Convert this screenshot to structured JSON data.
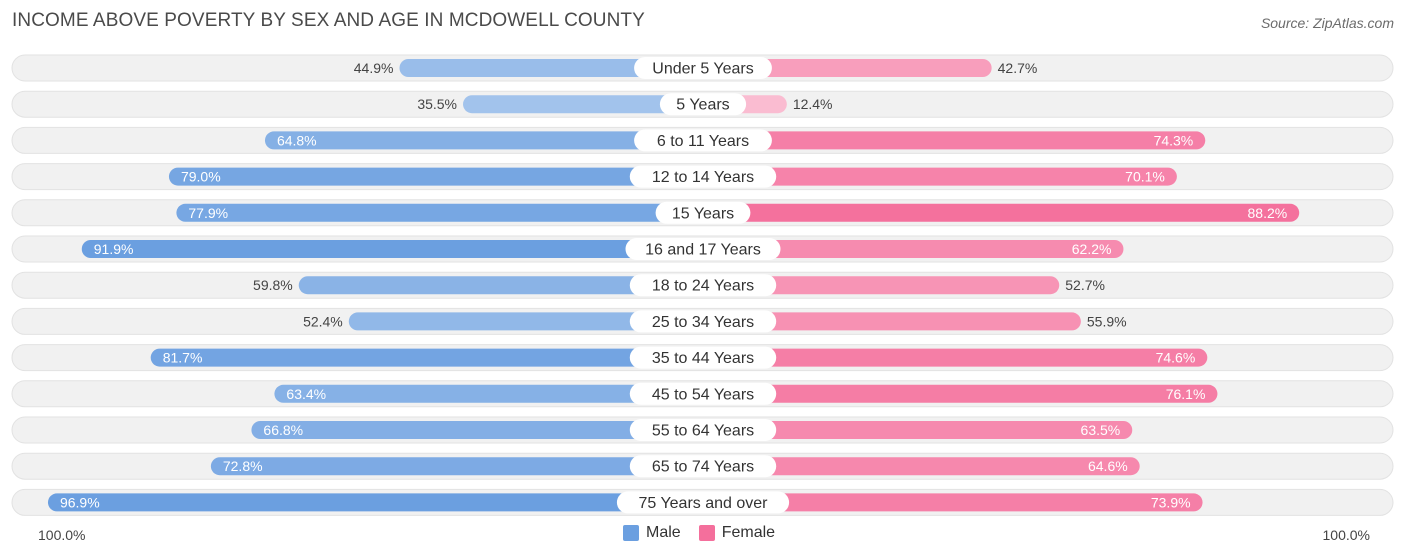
{
  "header": {
    "title": "INCOME ABOVE POVERTY BY SEX AND AGE IN MCDOWELL COUNTY",
    "source": "Source: ZipAtlas.com"
  },
  "chart_data": {
    "type": "bar",
    "orientation": "horizontal-diverging",
    "title": "INCOME ABOVE POVERTY BY SEX AND AGE IN MCDOWELL COUNTY",
    "categories": [
      "Under 5 Years",
      "5 Years",
      "6 to 11 Years",
      "12 to 14 Years",
      "15 Years",
      "16 and 17 Years",
      "18 to 24 Years",
      "25 to 34 Years",
      "35 to 44 Years",
      "45 to 54 Years",
      "55 to 64 Years",
      "65 to 74 Years",
      "75 Years and over"
    ],
    "series": [
      {
        "name": "Male",
        "color": "#6b9fe0",
        "values": [
          44.9,
          35.5,
          64.8,
          79.0,
          77.9,
          91.9,
          59.8,
          52.4,
          81.7,
          63.4,
          66.8,
          72.8,
          96.9
        ],
        "labels": [
          "44.9%",
          "35.5%",
          "64.8%",
          "79.0%",
          "77.9%",
          "91.9%",
          "59.8%",
          "52.4%",
          "81.7%",
          "63.4%",
          "66.8%",
          "72.8%",
          "96.9%"
        ]
      },
      {
        "name": "Female",
        "color": "#f46f9c",
        "values": [
          42.7,
          12.4,
          74.3,
          70.1,
          88.2,
          62.2,
          52.7,
          55.9,
          74.6,
          76.1,
          63.5,
          64.6,
          73.9
        ],
        "labels": [
          "42.7%",
          "12.4%",
          "74.3%",
          "70.1%",
          "88.2%",
          "62.2%",
          "52.7%",
          "55.9%",
          "74.6%",
          "76.1%",
          "63.5%",
          "64.6%",
          "73.9%"
        ]
      }
    ],
    "xlim": [
      0,
      100
    ],
    "axis_left_label": "100.0%",
    "axis_right_label": "100.0%",
    "legend_position": "bottom-center"
  }
}
